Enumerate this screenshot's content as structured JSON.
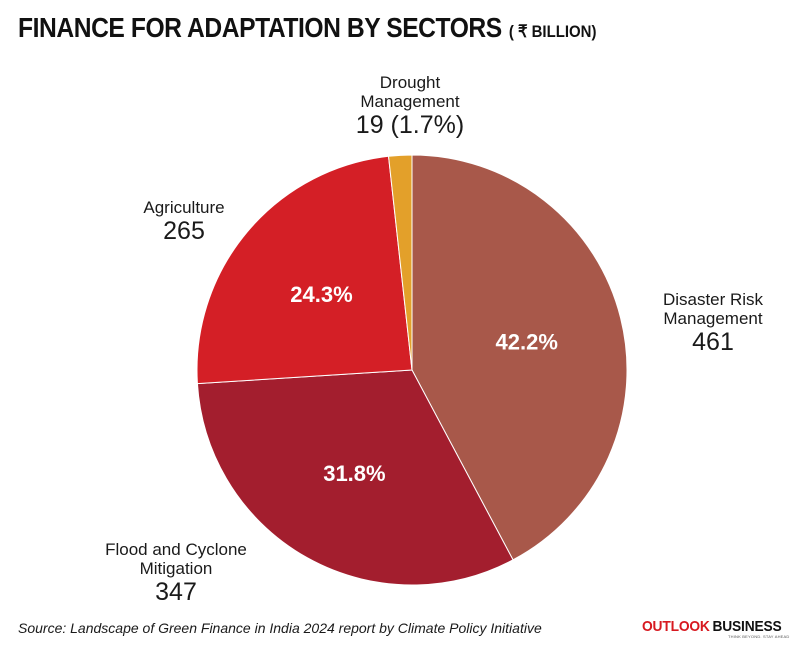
{
  "header": {
    "title": "FINANCE FOR ADAPTATION BY SECTORS",
    "unit": "( ₹ BILLION)"
  },
  "chart_data": {
    "type": "pie",
    "title": "FINANCE FOR ADAPTATION BY SECTORS",
    "subtitle": "( ₹ BILLION)",
    "slices": [
      {
        "category_lines": [
          "Disaster Risk",
          "Management"
        ],
        "value": 461,
        "value_text": "461",
        "percent_text": "42.2%",
        "color": "#a8584a"
      },
      {
        "category_lines": [
          "Flood and Cyclone",
          "Mitigation"
        ],
        "value": 347,
        "value_text": "347",
        "percent_text": "31.8%",
        "color": "#a31e2e"
      },
      {
        "category_lines": [
          "Agriculture"
        ],
        "value": 265,
        "value_text": "265",
        "percent_text": "24.3%",
        "color": "#d41f26"
      },
      {
        "category_lines": [
          "Drought",
          "Management"
        ],
        "value": 19,
        "value_text": "19 (1.7%)",
        "percent_text": "",
        "color": "#e3a02a"
      }
    ]
  },
  "footer": {
    "source": "Source: Landscape of Green Finance in India 2024 report by Climate Policy Initiative",
    "logo_part1": "OUTLOOK",
    "logo_part2": "BUSINESS",
    "logo_tagline": "THINK BEYOND. STAY AHEAD"
  }
}
